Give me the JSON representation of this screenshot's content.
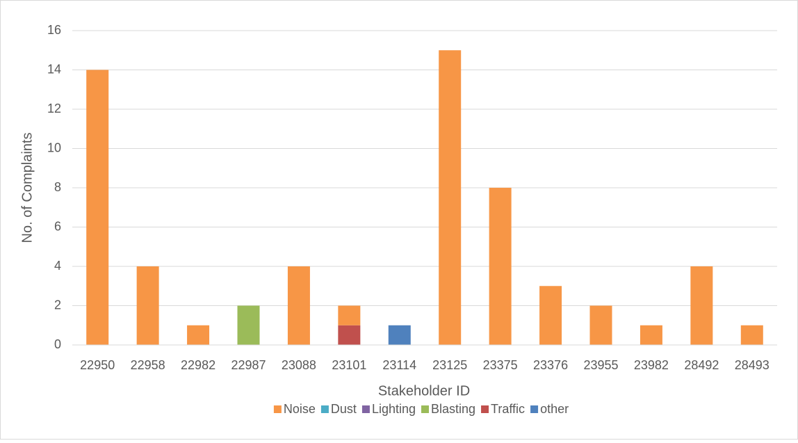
{
  "chart_data": {
    "type": "stacked_bar",
    "categories": [
      "22950",
      "22958",
      "22982",
      "22987",
      "23088",
      "23101",
      "23114",
      "23125",
      "23375",
      "23376",
      "23955",
      "23982",
      "28492",
      "28493"
    ],
    "series": [
      {
        "name": "Noise",
        "color": "#f79646",
        "values": [
          14,
          4,
          1,
          0,
          4,
          1,
          0,
          15,
          8,
          3,
          2,
          1,
          4,
          1
        ]
      },
      {
        "name": "Dust",
        "color": "#4bacc6",
        "values": [
          0,
          0,
          0,
          0,
          0,
          0,
          0,
          0,
          0,
          0,
          0,
          0,
          0,
          0
        ]
      },
      {
        "name": "Lighting",
        "color": "#8064a2",
        "values": [
          0,
          0,
          0,
          0,
          0,
          0,
          0,
          0,
          0,
          0,
          0,
          0,
          0,
          0
        ]
      },
      {
        "name": "Blasting",
        "color": "#9bbb59",
        "values": [
          0,
          0,
          0,
          2,
          0,
          0,
          0,
          0,
          0,
          0,
          0,
          0,
          0,
          0
        ]
      },
      {
        "name": "Traffic",
        "color": "#c0504d",
        "values": [
          0,
          0,
          0,
          0,
          0,
          1,
          0,
          0,
          0,
          0,
          0,
          0,
          0,
          0
        ]
      },
      {
        "name": "other",
        "color": "#4f81bd",
        "values": [
          0,
          0,
          0,
          0,
          0,
          0,
          1,
          0,
          0,
          0,
          0,
          0,
          0,
          0
        ]
      }
    ],
    "x_label": "Stakeholder ID",
    "y_label": "No. of Complaints",
    "ylim": [
      0,
      16
    ],
    "yticks": [
      0,
      2,
      4,
      6,
      8,
      10,
      12,
      14,
      16
    ],
    "grid": true,
    "legend": "bottom"
  }
}
